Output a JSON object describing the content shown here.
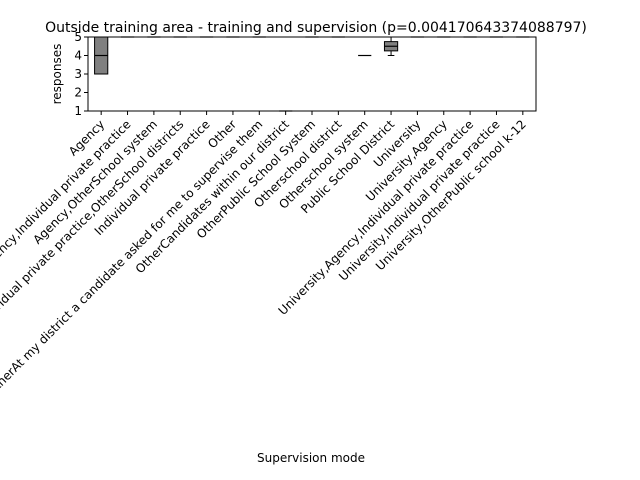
{
  "chart_data": {
    "type": "box",
    "title": "Outside training area - training and supervision (p=0.004170643374088797)",
    "xlabel": "Supervision mode",
    "ylabel": "responses",
    "ylim": [
      1,
      5
    ],
    "yticks": [
      1,
      2,
      3,
      4,
      5
    ],
    "grid": false,
    "box_color": "#808080",
    "median_color": "#000000",
    "categories": [
      "Agency",
      "Agency,Individual private practice",
      "Agency,OtherSchool system",
      "Agency,Individual private practice,OtherSchool districts",
      "Individual private practice",
      "Other",
      "OtherAt my district a candidate asked for me to supervise them",
      "OtherCandidates within our district",
      "OtherPublic School System",
      "Otherschool district",
      "Otherschool system",
      "Public School District",
      "University",
      "University,Agency",
      "University,Agency,Individual private practice",
      "University,Individual private practice",
      "University,OtherPublic school k-12"
    ],
    "boxes": [
      {
        "q1": 3,
        "median": 4,
        "q3": 5,
        "whislo": 3,
        "whishi": 5
      },
      {
        "q1": 5,
        "median": 5,
        "q3": 5,
        "whislo": 5,
        "whishi": 5
      },
      {
        "q1": 5,
        "median": 5,
        "q3": 5,
        "whislo": 5,
        "whishi": 5
      },
      {
        "q1": 5,
        "median": 5,
        "q3": 5,
        "whislo": 5,
        "whishi": 5
      },
      {
        "q1": 5,
        "median": 5,
        "q3": 5,
        "whislo": 5,
        "whishi": 5
      },
      {
        "q1": 5,
        "median": 5,
        "q3": 5,
        "whislo": 5,
        "whishi": 5
      },
      {
        "q1": 5,
        "median": 5,
        "q3": 5,
        "whislo": 5,
        "whishi": 5
      },
      {
        "q1": 1,
        "median": 1,
        "q3": 1,
        "whislo": 1,
        "whishi": 1
      },
      {
        "q1": 5,
        "median": 5,
        "q3": 5,
        "whislo": 5,
        "whishi": 5
      },
      {
        "q1": 5,
        "median": 5,
        "q3": 5,
        "whislo": 5,
        "whishi": 5
      },
      {
        "q1": 4,
        "median": 4,
        "q3": 4,
        "whislo": 4,
        "whishi": 4
      },
      {
        "q1": 4.25,
        "median": 4.5,
        "q3": 4.75,
        "whislo": 4,
        "whishi": 5
      },
      {
        "q1": 5,
        "median": 5,
        "q3": 5,
        "whislo": 5,
        "whishi": 5
      },
      {
        "q1": 5,
        "median": 5,
        "q3": 5,
        "whislo": 5,
        "whishi": 5
      },
      {
        "q1": 5,
        "median": 5,
        "q3": 5,
        "whislo": 5,
        "whishi": 5
      },
      {
        "q1": 5,
        "median": 5,
        "q3": 5,
        "whislo": 5,
        "whishi": 5
      },
      {
        "q1": 5,
        "median": 5,
        "q3": 5,
        "whislo": 5,
        "whishi": 5
      }
    ]
  }
}
